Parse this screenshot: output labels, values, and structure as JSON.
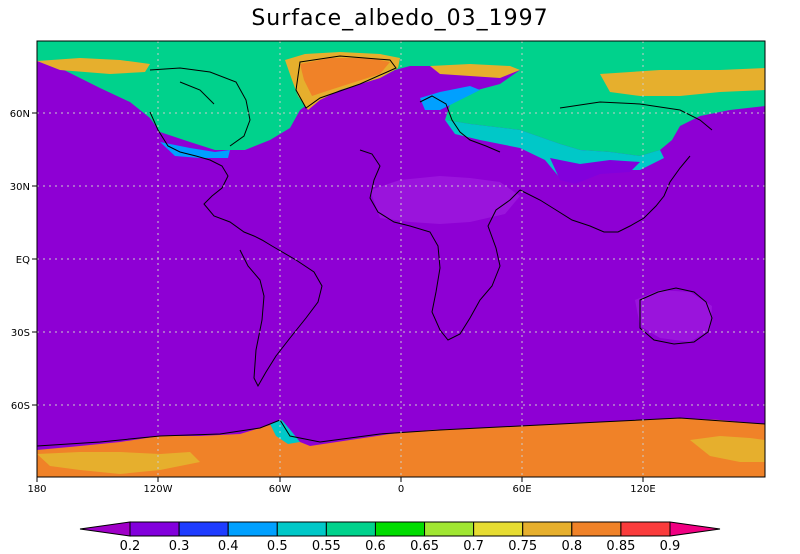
{
  "title": "Surface_albedo_03_1997",
  "map": {
    "lon_ticks": [
      "180",
      "120W",
      "60W",
      "0",
      "60E",
      "120E"
    ],
    "lat_ticks": [
      "60N",
      "30N",
      "EQ",
      "30S",
      "60S"
    ],
    "grid": true,
    "projection": "cylindrical equidistant"
  },
  "colorbar": {
    "labels": [
      "0.2",
      "0.3",
      "0.4",
      "0.5",
      "0.55",
      "0.6",
      "0.65",
      "0.7",
      "0.75",
      "0.8",
      "0.85",
      "0.9"
    ],
    "colors": [
      "#a000c8",
      "#8200dc",
      "#1e3cff",
      "#00a0ff",
      "#00c8c8",
      "#00d28c",
      "#00dc00",
      "#a0e632",
      "#e6dc32",
      "#e6af2d",
      "#f08228",
      "#fa3c3c",
      "#f00082"
    ]
  },
  "palette": {
    "ocean_land_low": "#8e00d4",
    "land_lighter": "#9a14dc",
    "green": "#00d28c",
    "teal": "#00c8c8",
    "cyan": "#00a0ff",
    "gold": "#e6af2d",
    "orange": "#f08228",
    "coast": "#000000"
  }
}
